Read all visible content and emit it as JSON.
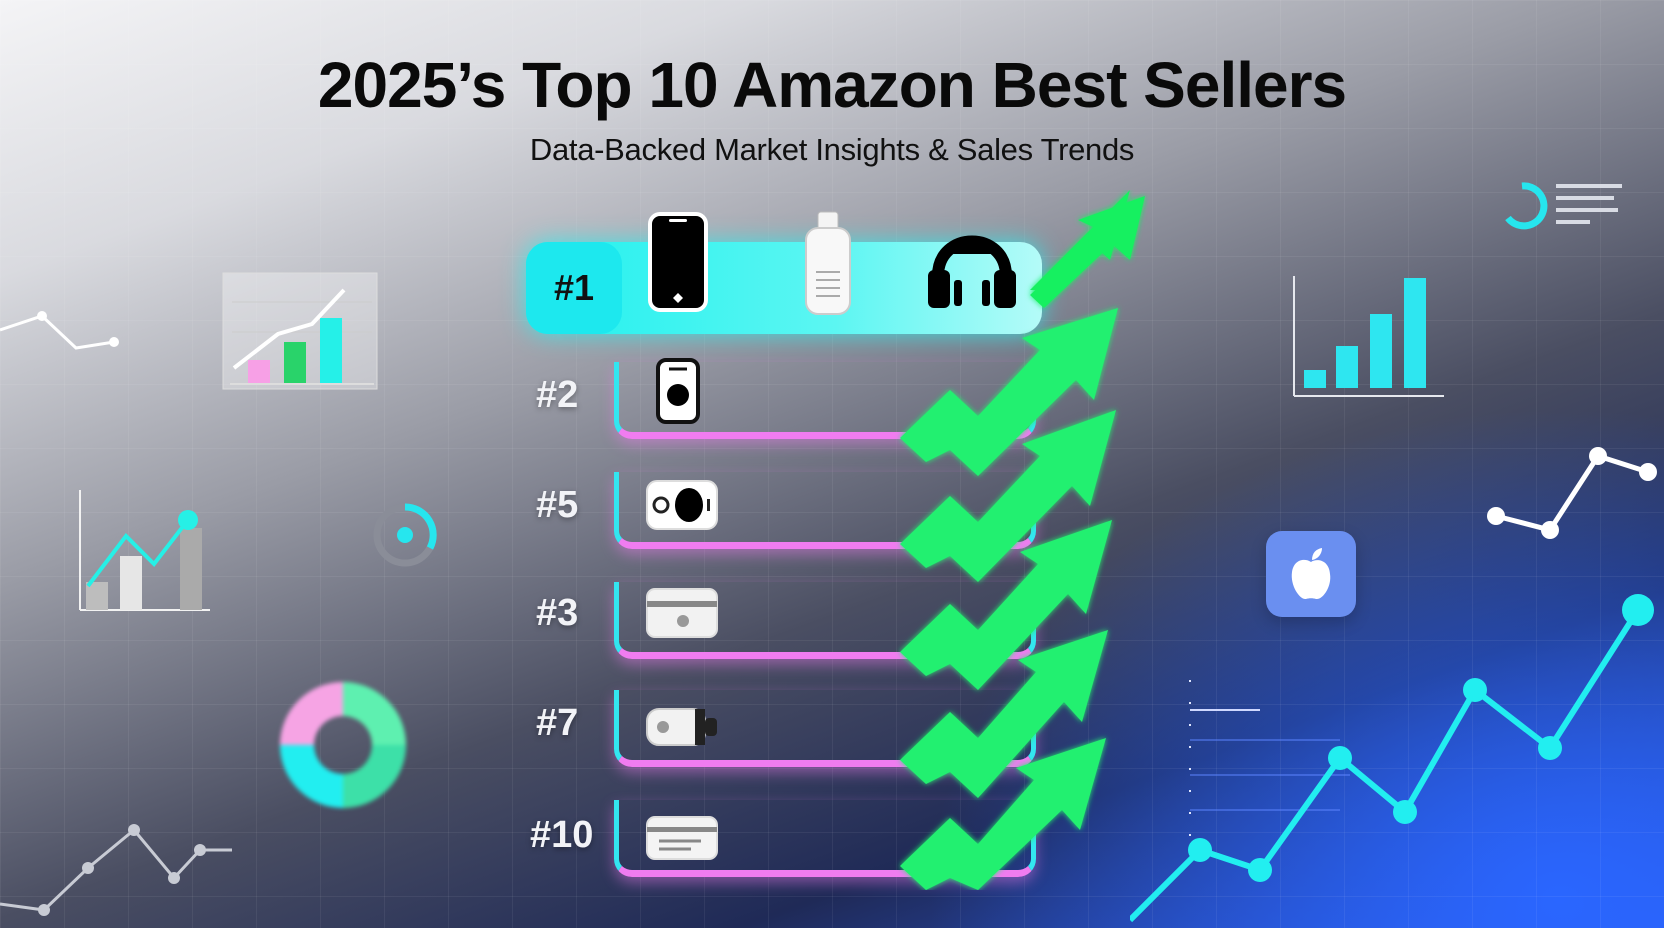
{
  "header": {
    "title": "2025’s Top 10 Amazon Best Sellers",
    "subtitle": "Data-Backed Market Insights & Sales Trends"
  },
  "ranking": {
    "first": {
      "label": "#1",
      "icons": [
        "smartphone-icon",
        "bottle-icon",
        "headphones-icon"
      ]
    },
    "rows": [
      {
        "label": "#2",
        "icon": "smart-speaker-icon"
      },
      {
        "label": "#5",
        "icon": "camera-icon"
      },
      {
        "label": "#3",
        "icon": "card-reader-icon"
      },
      {
        "label": "#7",
        "icon": "usb-drive-icon"
      },
      {
        "label": "#10",
        "icon": "gift-card-icon"
      }
    ]
  },
  "decorations": {
    "apple_tile_icon": "apple-logo-icon"
  },
  "colors": {
    "cyan": "#22eef0",
    "pink": "#f07cf0",
    "green": "#19f060",
    "blue": "#2b5cf0"
  }
}
